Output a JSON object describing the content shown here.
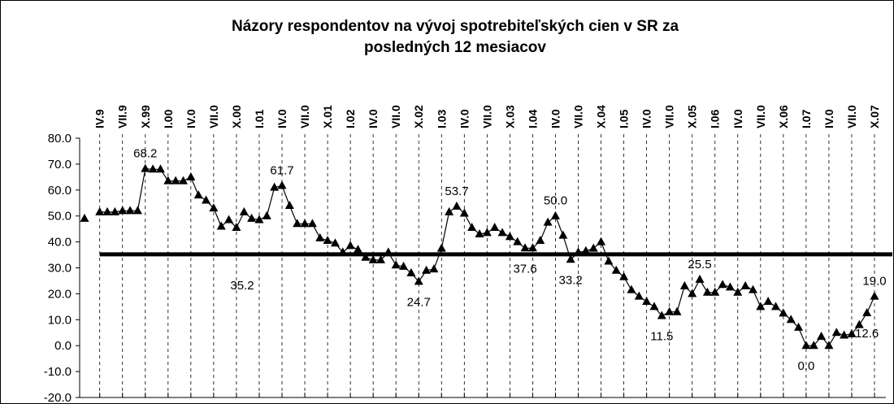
{
  "chart_data": {
    "type": "line",
    "title": [
      "Názory respondentov na vývoj spotrebiteľských cien v SR za",
      "posledných 12 mesiacov"
    ],
    "categories": [
      null,
      null,
      "IV.9",
      null,
      null,
      "VII.9",
      null,
      null,
      "X.99",
      null,
      null,
      "I.00",
      null,
      null,
      "IV.0",
      null,
      null,
      "VII.0",
      null,
      null,
      "X.00",
      null,
      null,
      "I.01",
      null,
      null,
      "IV.0",
      null,
      null,
      "VII.0",
      null,
      null,
      "X.01",
      null,
      null,
      "I.02",
      null,
      null,
      "IV.0",
      null,
      null,
      "VII.0",
      null,
      null,
      "X.02",
      null,
      null,
      "I.03",
      null,
      null,
      "IV.0",
      null,
      null,
      "VII.0",
      null,
      null,
      "X.03",
      null,
      null,
      "I.04",
      null,
      null,
      "IV.0",
      null,
      null,
      "VII.0",
      null,
      null,
      "X.04",
      null,
      null,
      "I.05",
      null,
      null,
      "IV.0",
      null,
      null,
      "VII.0",
      null,
      null,
      "X.05",
      null,
      null,
      "I.06",
      null,
      null,
      "IV.0",
      null,
      null,
      "VII.0",
      null,
      null,
      "X.06",
      null,
      null,
      "I.07",
      null,
      null,
      "IV.0",
      null,
      null,
      "VII.0",
      null,
      null,
      "X.07"
    ],
    "series": [
      {
        "color": "#000000",
        "values": [
          49,
          null,
          51.5,
          51.5,
          51.5,
          52,
          52,
          52,
          68.2,
          68,
          68,
          63.5,
          63.5,
          63.5,
          65,
          58,
          56,
          53,
          46,
          48.5,
          45.5,
          51.5,
          49,
          48.5,
          50,
          61,
          61.7,
          54,
          47,
          47,
          47,
          41.5,
          40.5,
          39.5,
          36,
          38.5,
          37,
          34,
          33,
          33,
          36,
          31,
          30.5,
          28,
          24.7,
          29,
          29.5,
          37.5,
          51.5,
          53.7,
          51,
          45.5,
          43,
          43.5,
          45.5,
          43.5,
          42,
          40,
          37.6,
          37.6,
          40.5,
          47.5,
          50,
          42.5,
          33.2,
          36,
          36.5,
          37.5,
          40,
          32.5,
          29,
          26.5,
          21.5,
          19,
          17,
          15,
          11.5,
          13,
          13,
          23,
          20,
          25.5,
          20.5,
          20.5,
          23.5,
          22.5,
          20.5,
          23,
          21.5,
          15,
          17,
          15,
          12.5,
          10,
          7,
          0,
          0,
          3.5,
          0,
          5,
          4,
          4.5,
          8,
          12.6,
          19
        ],
        "value_labels": [
          null,
          null,
          null,
          null,
          null,
          null,
          null,
          null,
          "68.2",
          null,
          null,
          null,
          null,
          null,
          null,
          null,
          null,
          null,
          null,
          null,
          null,
          null,
          null,
          null,
          null,
          null,
          "61.7",
          null,
          null,
          null,
          null,
          null,
          null,
          null,
          null,
          null,
          null,
          null,
          null,
          null,
          null,
          null,
          null,
          null,
          "24.7",
          null,
          null,
          null,
          null,
          "53.7",
          null,
          null,
          null,
          null,
          null,
          null,
          null,
          null,
          "37.6",
          null,
          null,
          null,
          "50.0",
          null,
          "33.2",
          null,
          null,
          null,
          null,
          null,
          null,
          null,
          null,
          null,
          null,
          null,
          "11.5",
          null,
          null,
          null,
          null,
          "25.5",
          null,
          null,
          null,
          null,
          null,
          null,
          null,
          null,
          null,
          null,
          null,
          null,
          null,
          "0.0",
          null,
          null,
          null,
          null,
          null,
          null,
          null,
          "12.6",
          "19.0"
        ]
      }
    ],
    "average": 35.2,
    "ylim": [
      -20,
      80
    ],
    "yticks": [
      {
        "value": -20,
        "label": "-20.0"
      },
      {
        "value": -10,
        "label": "-10.0"
      },
      {
        "value": 0,
        "label": "0.0"
      },
      {
        "value": 10,
        "label": "10.0"
      },
      {
        "value": 20,
        "label": "20.0"
      },
      {
        "value": 30,
        "label": "30.0"
      },
      {
        "value": 40,
        "label": "40.0"
      },
      {
        "value": 50,
        "label": "50.0"
      },
      {
        "value": 60,
        "label": "60.0"
      },
      {
        "value": 70,
        "label": "70.0"
      },
      {
        "value": 80,
        "label": "80.0"
      }
    ],
    "grid": true
  }
}
